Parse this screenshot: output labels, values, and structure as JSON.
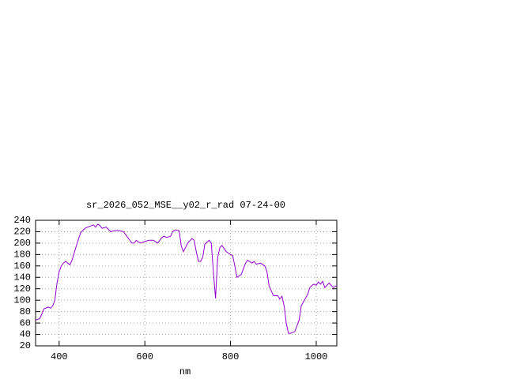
{
  "chart_data": {
    "type": "line",
    "title": "sr_2026_052_MSE__y02_r_rad 07-24-00",
    "x_label": "nm",
    "xlim": [
      345,
      1048
    ],
    "ylim": [
      20,
      240
    ],
    "xticks": [
      400,
      600,
      800,
      1000
    ],
    "yticks": [
      20,
      40,
      60,
      80,
      100,
      120,
      140,
      160,
      180,
      200,
      220,
      240
    ],
    "grid": true,
    "x": [
      345,
      355,
      365,
      375,
      380,
      385,
      390,
      395,
      400,
      405,
      410,
      415,
      420,
      425,
      430,
      440,
      450,
      460,
      470,
      480,
      485,
      490,
      495,
      500,
      510,
      520,
      530,
      540,
      550,
      560,
      570,
      575,
      580,
      585,
      590,
      600,
      610,
      620,
      630,
      640,
      645,
      650,
      660,
      665,
      670,
      680,
      685,
      690,
      700,
      710,
      715,
      720,
      725,
      730,
      735,
      740,
      750,
      755,
      760,
      765,
      770,
      775,
      780,
      790,
      800,
      805,
      810,
      815,
      825,
      830,
      835,
      840,
      850,
      855,
      860,
      870,
      880,
      885,
      890,
      900,
      910,
      915,
      920,
      925,
      930,
      935,
      940,
      950,
      955,
      960,
      965,
      970,
      980,
      985,
      990,
      995,
      1000,
      1005,
      1010,
      1015,
      1020,
      1030,
      1040,
      1048
    ],
    "series": [
      {
        "color": "#9400d3",
        "values": [
          65,
          68,
          85,
          88,
          86,
          90,
          100,
          130,
          150,
          160,
          165,
          168,
          165,
          162,
          170,
          195,
          218,
          226,
          229,
          232,
          228,
          233,
          231,
          226,
          228,
          220,
          222,
          222,
          220,
          210,
          200,
          200,
          205,
          202,
          200,
          203,
          205,
          205,
          200,
          210,
          212,
          210,
          212,
          220,
          223,
          222,
          195,
          185,
          200,
          208,
          205,
          185,
          168,
          168,
          175,
          198,
          205,
          200,
          150,
          103,
          175,
          192,
          196,
          185,
          180,
          178,
          160,
          140,
          145,
          155,
          165,
          170,
          165,
          168,
          163,
          165,
          160,
          150,
          125,
          108,
          108,
          102,
          107,
          90,
          60,
          42,
          42,
          45,
          55,
          65,
          90,
          97,
          110,
          122,
          126,
          128,
          126,
          132,
          128,
          133,
          122,
          130,
          122,
          126
        ]
      }
    ]
  }
}
